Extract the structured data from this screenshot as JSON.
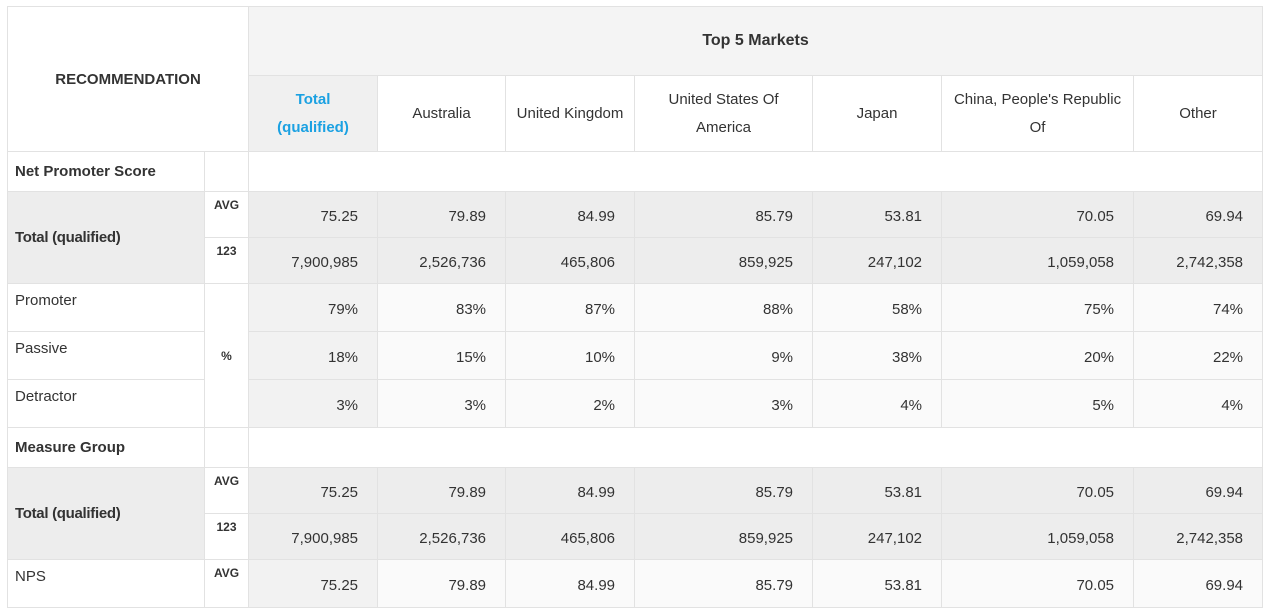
{
  "header": {
    "corner": "RECOMMENDATION",
    "group": "Top 5 Markets",
    "columns": [
      "Total (qualified)",
      "Australia",
      "United Kingdom",
      "United States Of America",
      "Japan",
      "China, People's Republic Of",
      "Other"
    ]
  },
  "rows": [
    {
      "section": "Net Promoter Score"
    },
    {
      "label": "Total (qualified)",
      "unit": "AVG",
      "values": [
        "75.25",
        "79.89",
        "84.99",
        "85.79",
        "53.81",
        "70.05",
        "69.94"
      ]
    },
    {
      "unit": "123",
      "values": [
        "7,900,985",
        "2,526,736",
        "465,806",
        "859,925",
        "247,102",
        "1,059,058",
        "2,742,358"
      ]
    },
    {
      "label": "Promoter",
      "unit": "%",
      "values": [
        "79%",
        "83%",
        "87%",
        "88%",
        "58%",
        "75%",
        "74%"
      ]
    },
    {
      "label": "Passive",
      "values": [
        "18%",
        "15%",
        "10%",
        "9%",
        "38%",
        "20%",
        "22%"
      ]
    },
    {
      "label": "Detractor",
      "values": [
        "3%",
        "3%",
        "2%",
        "3%",
        "4%",
        "5%",
        "4%"
      ]
    },
    {
      "section": "Measure Group"
    },
    {
      "label": "Total (qualified)",
      "unit": "AVG",
      "values": [
        "75.25",
        "79.89",
        "84.99",
        "85.79",
        "53.81",
        "70.05",
        "69.94"
      ]
    },
    {
      "unit": "123",
      "values": [
        "7,900,985",
        "2,526,736",
        "465,806",
        "859,925",
        "247,102",
        "1,059,058",
        "2,742,358"
      ]
    },
    {
      "label": "NPS",
      "unit": "AVG",
      "values": [
        "75.25",
        "79.89",
        "84.99",
        "85.79",
        "53.81",
        "70.05",
        "69.94"
      ]
    }
  ]
}
